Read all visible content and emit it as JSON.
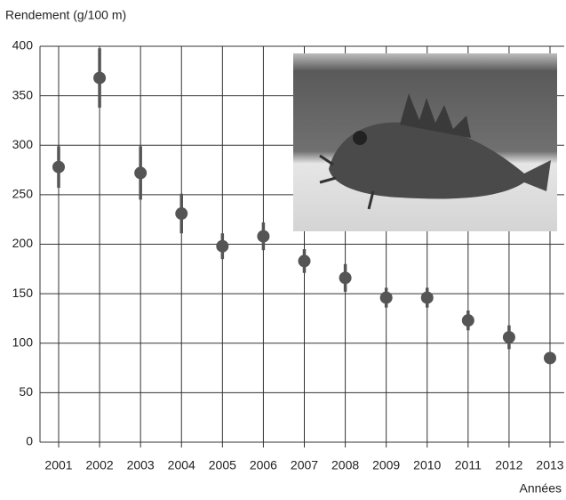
{
  "chart_data": {
    "type": "errorbar",
    "y_label": "Rendement (g/100 m)",
    "x_label": "Années",
    "categories": [
      "2001",
      "2002",
      "2003",
      "2004",
      "2005",
      "2006",
      "2007",
      "2008",
      "2009",
      "2010",
      "2011",
      "2012",
      "2013"
    ],
    "values": [
      278,
      368,
      272,
      231,
      198,
      208,
      183,
      166,
      146,
      146,
      123,
      106,
      85
    ],
    "errors": [
      21,
      30,
      27,
      20,
      13,
      14,
      12,
      14,
      10,
      10,
      10,
      12,
      5
    ],
    "color": "#555555",
    "ylim": [
      0,
      400
    ],
    "yticks": [
      0,
      50,
      100,
      150,
      200,
      250,
      300,
      350,
      400
    ],
    "grid": true
  }
}
